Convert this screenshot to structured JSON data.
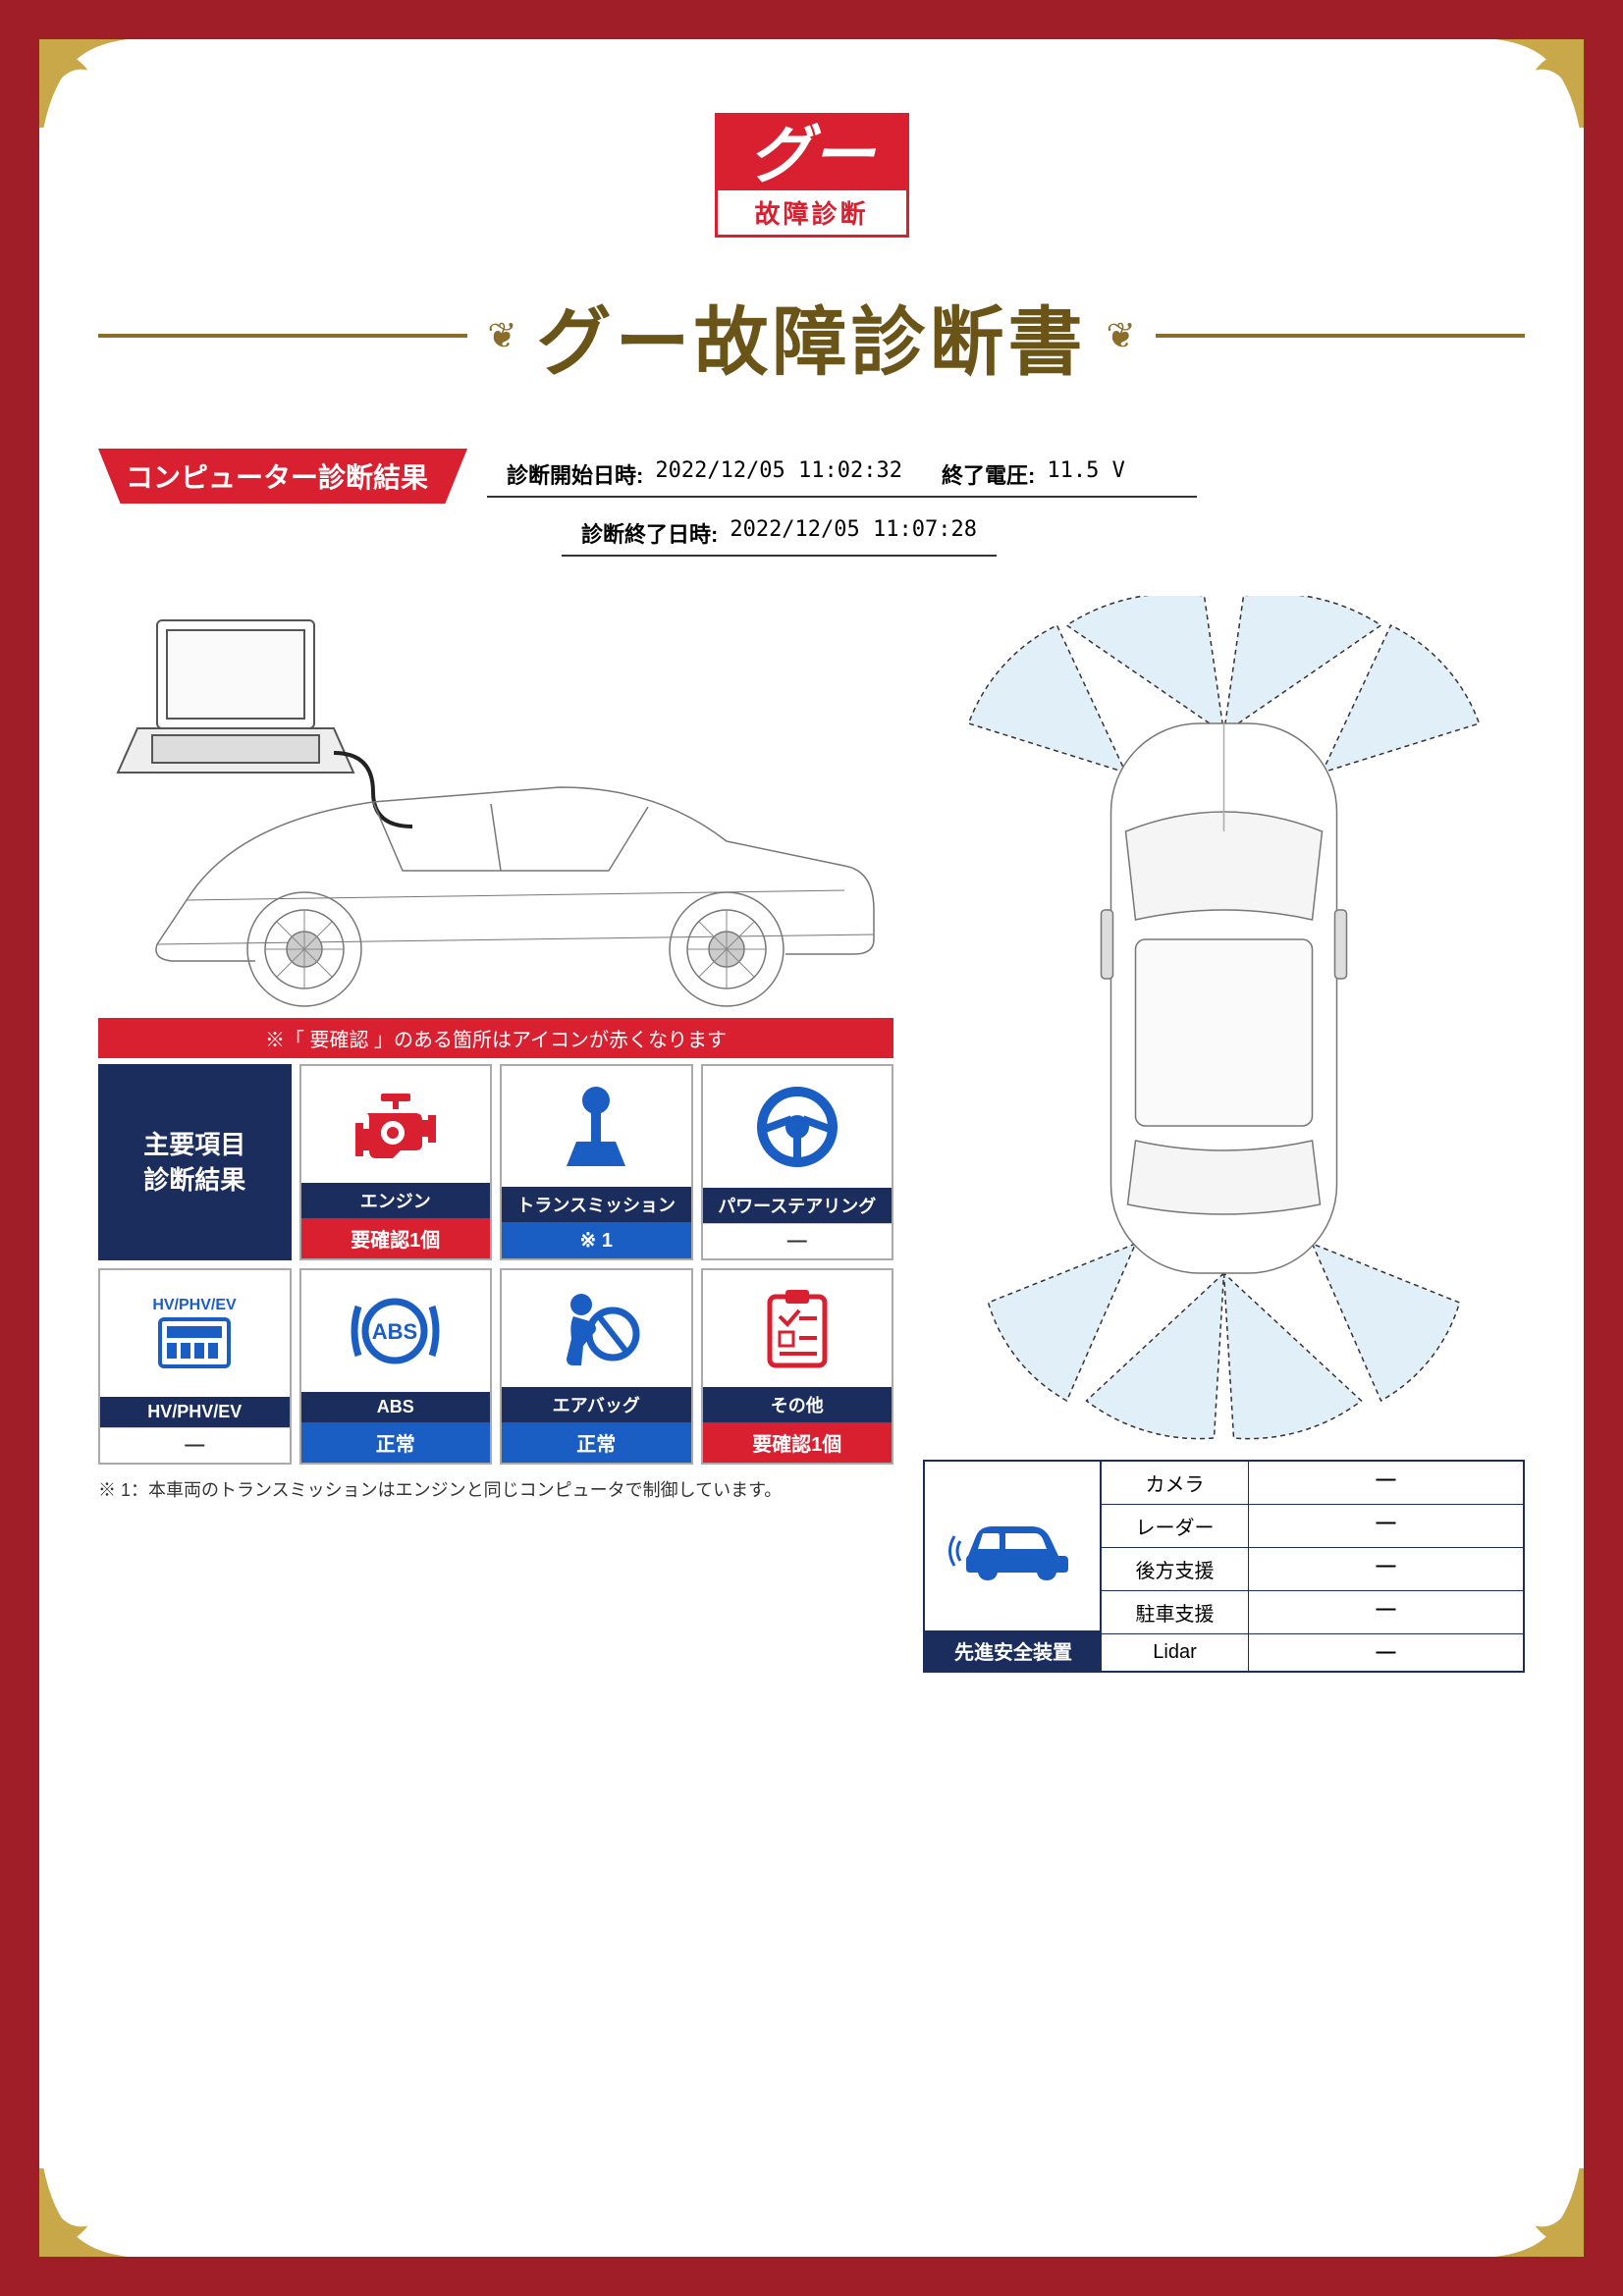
{
  "logo": {
    "brand": "グー",
    "sub": "故障診断"
  },
  "title": "グー故障診断書",
  "section_header": "コンピューター診断結果",
  "meta": {
    "start_label": "診断開始日時:",
    "start_value": "2022/12/05 11:02:32",
    "end_label": "診断終了日時:",
    "end_value": "2022/12/05 11:07:28",
    "voltage_label": "終了電圧:",
    "voltage_value": "11.5 V"
  },
  "note_bar": "※「 要確認 」のある箇所はアイコンが赤くなります",
  "header_card": "主要項目\n診断結果",
  "items": [
    {
      "label": "エンジン",
      "status": "要確認1個",
      "status_class": "red-status",
      "icon_color": "#d82030",
      "icon": "engine"
    },
    {
      "label": "トランスミッション",
      "status": "※ 1",
      "status_class": "blue-status",
      "icon_color": "#1a5ec4",
      "icon": "gear"
    },
    {
      "label": "パワーステアリング",
      "status": "―",
      "status_class": "gray-status",
      "icon_color": "#1a5ec4",
      "icon": "wheel"
    },
    {
      "label": "HV/PHV/EV",
      "status": "―",
      "status_class": "gray-status",
      "icon_color": "#1a5ec4",
      "icon": "hv"
    },
    {
      "label": "ABS",
      "status": "正常",
      "status_class": "blue-status",
      "icon_color": "#1a5ec4",
      "icon": "abs"
    },
    {
      "label": "エアバッグ",
      "status": "正常",
      "status_class": "blue-status",
      "icon_color": "#1a5ec4",
      "icon": "airbag"
    },
    {
      "label": "その他",
      "status": "要確認1個",
      "status_class": "red-status",
      "icon_color": "#d82030",
      "icon": "other"
    }
  ],
  "footnote": "※ 1：本車両のトランスミッションはエンジンと同じコンピュータで制御しています。",
  "safety": {
    "title": "先進安全装置",
    "rows": [
      {
        "label": "カメラ",
        "value": "―"
      },
      {
        "label": "レーダー",
        "value": "―"
      },
      {
        "label": "後方支援",
        "value": "―"
      },
      {
        "label": "駐車支援",
        "value": "―"
      },
      {
        "label": "Lidar",
        "value": "―"
      }
    ]
  },
  "colors": {
    "frame": "#a01e28",
    "primary_red": "#d82030",
    "navy": "#1a2d5c",
    "blue": "#1a5ec4",
    "gold": "#8a6d2b",
    "title_gold": "#6b5418"
  }
}
